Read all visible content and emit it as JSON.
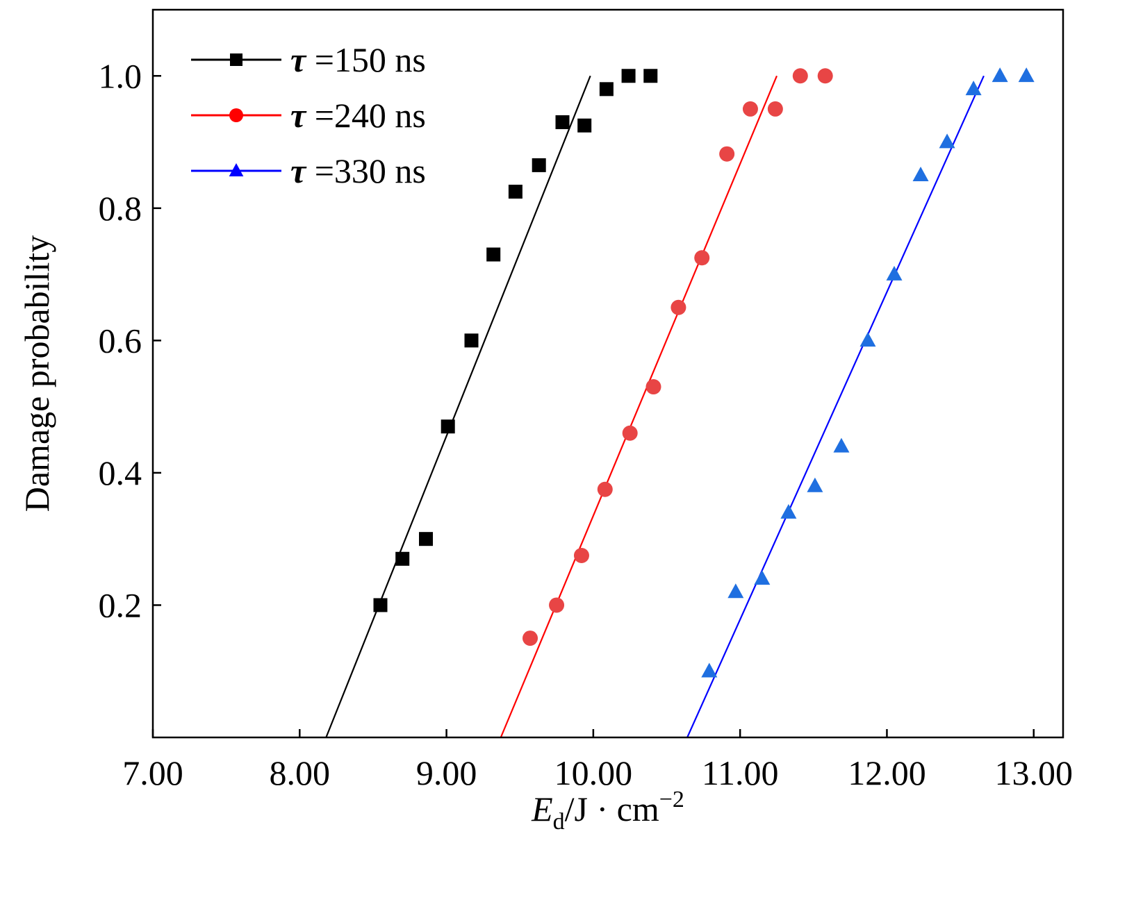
{
  "chart_data": {
    "type": "scatter",
    "xlabel": "Ed/J · cm−2",
    "xlabel_parts": {
      "symbol": "E",
      "subscript": "d",
      "rest": "/J · cm",
      "superscript": "−2"
    },
    "ylabel": "Damage probability",
    "xlim": [
      7.0,
      13.2
    ],
    "ylim": [
      0.0,
      1.1
    ],
    "xticks": [
      "7.00",
      "8.00",
      "9.00",
      "10.00",
      "11.00",
      "12.00",
      "13.00"
    ],
    "yticks": [
      "0.2",
      "0.4",
      "0.6",
      "0.8",
      "1.0"
    ],
    "legend_position": "top-left",
    "grid": false,
    "series": [
      {
        "name": "τ =150 ns",
        "tau": "τ",
        "rest": " =150 ns",
        "marker": "square",
        "color": "#000000",
        "line_color": "#000000",
        "points": [
          [
            8.55,
            0.2
          ],
          [
            8.7,
            0.27
          ],
          [
            8.86,
            0.3
          ],
          [
            9.01,
            0.47
          ],
          [
            9.17,
            0.6
          ],
          [
            9.32,
            0.73
          ],
          [
            9.47,
            0.825
          ],
          [
            9.63,
            0.865
          ],
          [
            9.79,
            0.93
          ],
          [
            9.94,
            0.925
          ],
          [
            10.09,
            0.98
          ],
          [
            10.24,
            1.0
          ],
          [
            10.39,
            1.0
          ]
        ],
        "fit": [
          [
            8.18,
            0.0
          ],
          [
            9.98,
            1.0
          ]
        ]
      },
      {
        "name": "τ =240 ns",
        "tau": "τ",
        "rest": " =240 ns",
        "marker": "circle",
        "color": "#e84545",
        "line_color": "#ff0000",
        "points": [
          [
            9.57,
            0.15
          ],
          [
            9.75,
            0.2
          ],
          [
            9.92,
            0.275
          ],
          [
            10.08,
            0.375
          ],
          [
            10.25,
            0.46
          ],
          [
            10.41,
            0.53
          ],
          [
            10.58,
            0.65
          ],
          [
            10.74,
            0.725
          ],
          [
            10.91,
            0.882
          ],
          [
            11.07,
            0.95
          ],
          [
            11.24,
            0.95
          ],
          [
            11.41,
            1.0
          ],
          [
            11.58,
            1.0
          ]
        ],
        "fit": [
          [
            9.37,
            0.0
          ],
          [
            11.25,
            1.0
          ]
        ]
      },
      {
        "name": "τ =330 ns",
        "tau": "τ",
        "rest": " =330 ns",
        "marker": "triangle",
        "color": "#1f6fe0",
        "line_color": "#0000ff",
        "points": [
          [
            10.79,
            0.1
          ],
          [
            10.97,
            0.22
          ],
          [
            11.15,
            0.24
          ],
          [
            11.33,
            0.34
          ],
          [
            11.51,
            0.38
          ],
          [
            11.69,
            0.44
          ],
          [
            11.87,
            0.6
          ],
          [
            12.05,
            0.7
          ],
          [
            12.23,
            0.85
          ],
          [
            12.41,
            0.9
          ],
          [
            12.59,
            0.98
          ],
          [
            12.77,
            1.0
          ],
          [
            12.95,
            1.0
          ]
        ],
        "fit": [
          [
            10.64,
            0.0
          ],
          [
            12.66,
            1.0
          ]
        ]
      }
    ]
  }
}
